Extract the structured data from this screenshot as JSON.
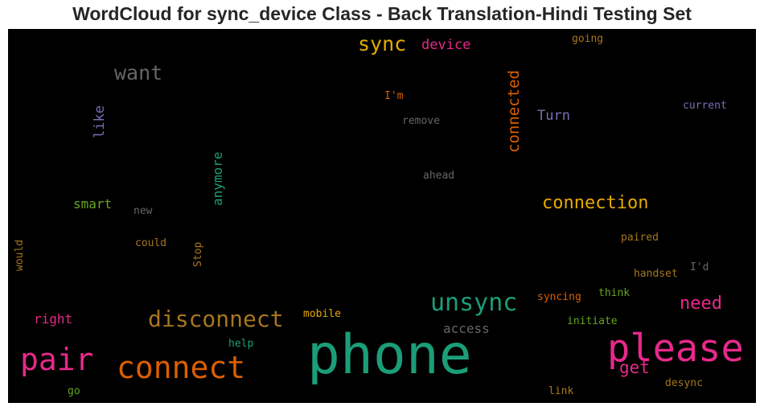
{
  "chart_data": {
    "type": "wordcloud",
    "title": "WordCloud for sync_device Class - Back Translation-Hindi Testing Set",
    "background": "#000000",
    "words": [
      {
        "text": "phone",
        "weight": 100,
        "color": "#1b9e77",
        "vertical": false
      },
      {
        "text": "please",
        "weight": 70,
        "color": "#e7298a",
        "vertical": false
      },
      {
        "text": "connect",
        "weight": 58,
        "color": "#d95f02",
        "vertical": false
      },
      {
        "text": "pair",
        "weight": 55,
        "color": "#e7298a",
        "vertical": false
      },
      {
        "text": "unsync",
        "weight": 48,
        "color": "#1b9e77",
        "vertical": false
      },
      {
        "text": "disconnect",
        "weight": 45,
        "color": "#a6761d",
        "vertical": false
      },
      {
        "text": "want",
        "weight": 40,
        "color": "#666666",
        "vertical": false
      },
      {
        "text": "sync",
        "weight": 40,
        "color": "#e6ab02",
        "vertical": false
      },
      {
        "text": "connection",
        "weight": 37,
        "color": "#e6ab02",
        "vertical": false
      },
      {
        "text": "need",
        "weight": 35,
        "color": "#e7298a",
        "vertical": false
      },
      {
        "text": "get",
        "weight": 33,
        "color": "#e7298a",
        "vertical": false
      },
      {
        "text": "connected",
        "weight": 30,
        "color": "#d95f02",
        "vertical": true
      },
      {
        "text": "device",
        "weight": 28,
        "color": "#e7298a",
        "vertical": false
      },
      {
        "text": "Turn",
        "weight": 28,
        "color": "#7570b3",
        "vertical": false
      },
      {
        "text": "like",
        "weight": 28,
        "color": "#7570b3",
        "vertical": true
      },
      {
        "text": "anymore",
        "weight": 26,
        "color": "#1b9e77",
        "vertical": true
      },
      {
        "text": "smart",
        "weight": 26,
        "color": "#66a61e",
        "vertical": false
      },
      {
        "text": "right",
        "weight": 26,
        "color": "#e7298a",
        "vertical": false
      },
      {
        "text": "access",
        "weight": 25,
        "color": "#666666",
        "vertical": false
      },
      {
        "text": "mobile",
        "weight": 20,
        "color": "#e6ab02",
        "vertical": false
      },
      {
        "text": "syncing",
        "weight": 19,
        "color": "#d95f02",
        "vertical": false
      },
      {
        "text": "think",
        "weight": 19,
        "color": "#66a61e",
        "vertical": false
      },
      {
        "text": "initiate",
        "weight": 19,
        "color": "#66a61e",
        "vertical": false
      },
      {
        "text": "handset",
        "weight": 19,
        "color": "#a6761d",
        "vertical": false
      },
      {
        "text": "I'd",
        "weight": 19,
        "color": "#666666",
        "vertical": false
      },
      {
        "text": "paired",
        "weight": 19,
        "color": "#a6761d",
        "vertical": false
      },
      {
        "text": "current",
        "weight": 19,
        "color": "#7570b3",
        "vertical": false
      },
      {
        "text": "I'm",
        "weight": 19,
        "color": "#d95f02",
        "vertical": false
      },
      {
        "text": "remove",
        "weight": 19,
        "color": "#666666",
        "vertical": false
      },
      {
        "text": "ahead",
        "weight": 19,
        "color": "#666666",
        "vertical": false
      },
      {
        "text": "going",
        "weight": 19,
        "color": "#a6761d",
        "vertical": false
      },
      {
        "text": "new",
        "weight": 19,
        "color": "#666666",
        "vertical": false
      },
      {
        "text": "could",
        "weight": 19,
        "color": "#a6761d",
        "vertical": false
      },
      {
        "text": "Stop",
        "weight": 19,
        "color": "#a6761d",
        "vertical": true
      },
      {
        "text": "would",
        "weight": 19,
        "color": "#a6761d",
        "vertical": true
      },
      {
        "text": "help",
        "weight": 19,
        "color": "#1b9e77",
        "vertical": false
      },
      {
        "text": "go",
        "weight": 19,
        "color": "#66a61e",
        "vertical": false
      },
      {
        "text": "link",
        "weight": 19,
        "color": "#a6761d",
        "vertical": false
      },
      {
        "text": "desync",
        "weight": 19,
        "color": "#a6761d",
        "vertical": false
      }
    ]
  }
}
